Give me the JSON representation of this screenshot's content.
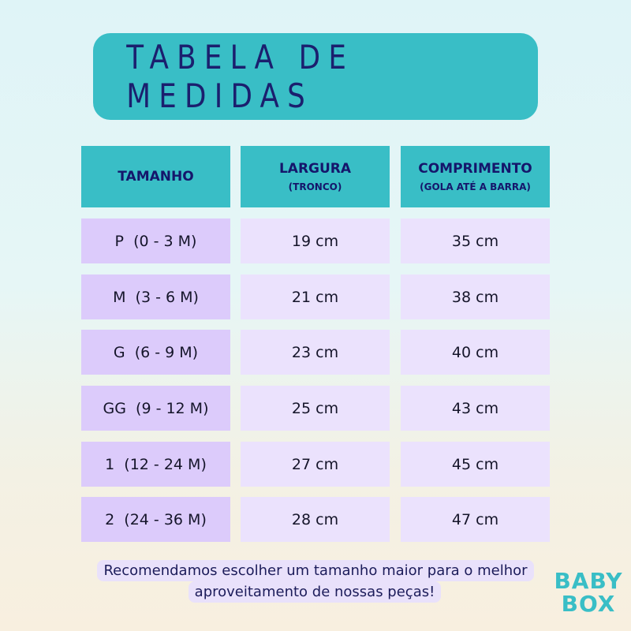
{
  "title": "Tabela de Medidas",
  "headers": [
    {
      "main": "TAMANHO",
      "sub": ""
    },
    {
      "main": "LARGURA",
      "sub": "(TRONCO)"
    },
    {
      "main": "COMPRIMENTO",
      "sub": "(GOLA ATÉ A BARRA)"
    }
  ],
  "rows": [
    [
      "P  (0 - 3 M)",
      "19 cm",
      "35 cm"
    ],
    [
      "M  (3 - 6 M)",
      "21 cm",
      "38 cm"
    ],
    [
      "G  (6 - 9 M)",
      "23 cm",
      "40 cm"
    ],
    [
      "GG  (9 - 12 M)",
      "25 cm",
      "43 cm"
    ],
    [
      "1  (12 - 24 M)",
      "27 cm",
      "45 cm"
    ],
    [
      "2  (24 - 36 M)",
      "28 cm",
      "47 cm"
    ]
  ],
  "note": {
    "line1": "Recomendamos escolher um tamanho maior para o melhor",
    "line2": "aproveitamento de nossas peças!"
  },
  "logo": {
    "line1": "BABY",
    "line2": "BOX"
  },
  "colors": {
    "accent": "#39bec6",
    "text": "#1b1f6e",
    "size_cell": "#dccbfb",
    "value_cell": "#ebe2fd"
  }
}
